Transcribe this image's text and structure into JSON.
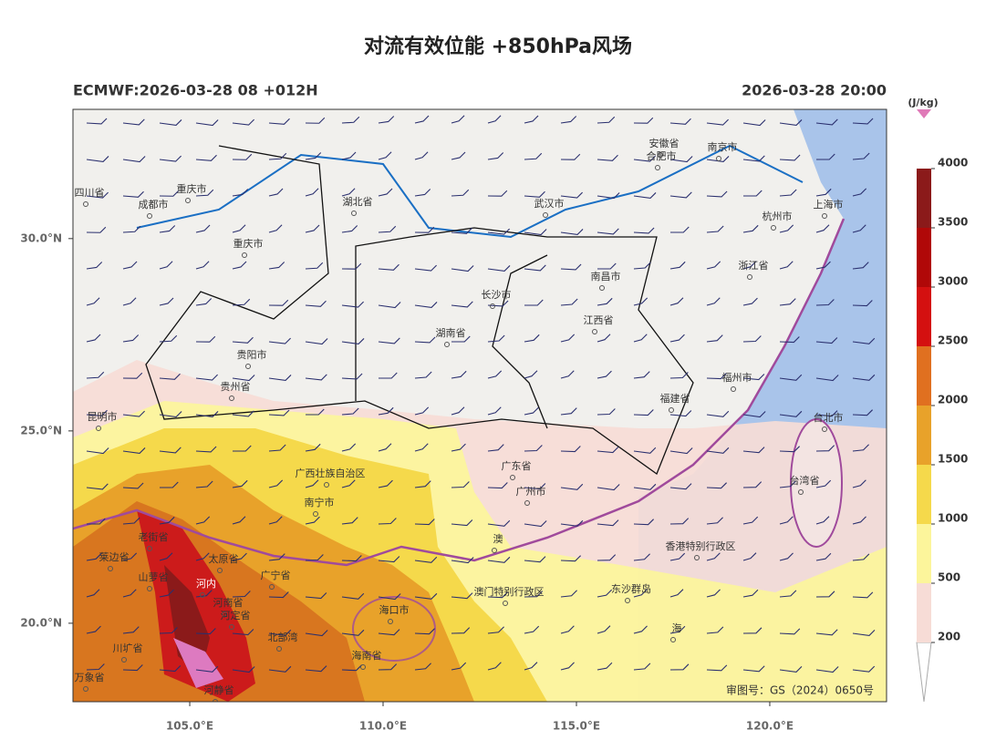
{
  "header": {
    "title": "对流有效位能 +850hPa风场",
    "left": "ECMWF:2026-03-28 08 +012H",
    "right": "2026-03-28 20:00"
  },
  "map": {
    "xlim": [
      101.98,
      123.02
    ],
    "ylim": [
      17.96,
      33.36
    ],
    "xticks": [
      {
        "value": 105,
        "label": "105.0°E"
      },
      {
        "value": 110,
        "label": "110.0°E"
      },
      {
        "value": 115,
        "label": "115.0°E"
      },
      {
        "value": 120,
        "label": "120.0°E"
      }
    ],
    "yticks": [
      {
        "value": 30,
        "label": "30.0°N"
      },
      {
        "value": 25,
        "label": "25.0°N"
      },
      {
        "value": 20,
        "label": "20.0°N"
      }
    ],
    "labels": [
      "四川省",
      "成都市",
      "重庆市",
      "重庆市",
      "湖北省",
      "武汉市",
      "安徽省",
      "合肥市",
      "南京市",
      "上海市",
      "杭州市",
      "浙江省",
      "南昌市",
      "长沙市",
      "湖南省",
      "江西省",
      "贵阳市",
      "贵州省",
      "昆明市",
      "福州市",
      "福建省",
      "台北市",
      "台湾省",
      "广东省",
      "广州市",
      "广西壮族自治区",
      "南宁市",
      "香港特别行政区",
      "澳门特别行政区",
      "东沙群岛",
      "海口市",
      "海南省",
      "河内",
      "河南省",
      "老街省",
      "莱边省",
      "太原省",
      "山萝省",
      "广宁省",
      "河定省",
      "北部湾",
      "川圹省",
      "万象省",
      "河静省",
      "海",
      "澳"
    ],
    "credit": "审图号：GS（2024）0650号"
  },
  "colorbar": {
    "unit": "(J/kg)",
    "ticks": [
      200,
      500,
      1000,
      1500,
      2000,
      2500,
      3000,
      3500,
      4000
    ],
    "colors": [
      "#ffffff",
      "#f7dcd6",
      "#fcf59b",
      "#f5d94b",
      "#e8a22a",
      "#e07020",
      "#d41010",
      "#b00808",
      "#8b1a1a",
      "#e07ab8"
    ]
  }
}
